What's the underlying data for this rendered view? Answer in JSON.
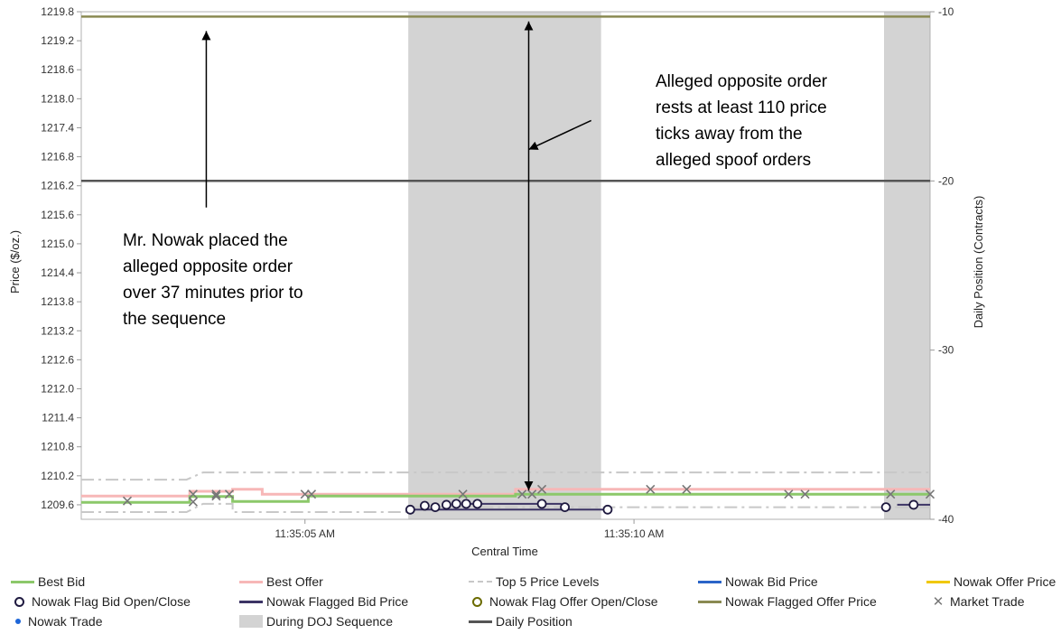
{
  "chart_data": {
    "type": "line",
    "xlabel": "Central Time",
    "ylabel": "Price ($/oz.)",
    "y2label": "Daily Position (Contracts)",
    "x_ticks": [
      {
        "t": 5,
        "label": "11:35:05 AM"
      },
      {
        "t": 10,
        "label": "11:35:10 AM"
      }
    ],
    "x_unit": "seconds after 11:35:00 AM",
    "xlim": [
      1.6,
      14.5
    ],
    "ylim": [
      1209.3,
      1219.8
    ],
    "y_ticks": [
      "1209.6",
      "1210.2",
      "1210.8",
      "1211.4",
      "1212.0",
      "1212.6",
      "1213.2",
      "1213.8",
      "1214.4",
      "1215.0",
      "1215.6",
      "1216.2",
      "1216.8",
      "1217.4",
      "1218.0",
      "1218.6",
      "1219.2",
      "1219.8"
    ],
    "y2lim": [
      -40,
      -10
    ],
    "y2_ticks": [
      "-10",
      "-20",
      "-30",
      "-40"
    ],
    "shaded_regions": [
      {
        "name": "During DOJ Sequence",
        "x": [
          6.57,
          9.5
        ]
      },
      {
        "name": "During DOJ Sequence",
        "x": [
          13.8,
          14.5
        ]
      }
    ],
    "series": [
      {
        "name": "Nowak Flagged Offer Price",
        "color": "#8a8a52",
        "width": 2.5,
        "points": [
          [
            1.6,
            1219.7
          ],
          [
            14.5,
            1219.7
          ]
        ]
      },
      {
        "name": "Daily Position",
        "axis": "y2",
        "color": "#555555",
        "width": 2.5,
        "points": [
          [
            1.6,
            -20
          ],
          [
            14.5,
            -20
          ]
        ]
      },
      {
        "name": "Best Offer",
        "color": "#f7b7b7",
        "width": 3,
        "points": [
          [
            1.6,
            1209.78
          ],
          [
            3.25,
            1209.78
          ],
          [
            3.25,
            1209.88
          ],
          [
            3.9,
            1209.88
          ],
          [
            3.9,
            1209.92
          ],
          [
            4.35,
            1209.92
          ],
          [
            4.35,
            1209.82
          ],
          [
            8.2,
            1209.82
          ],
          [
            8.2,
            1209.92
          ],
          [
            14.5,
            1209.92
          ]
        ]
      },
      {
        "name": "Best Bid",
        "color": "#8cc86a",
        "width": 3,
        "points": [
          [
            1.6,
            1209.65
          ],
          [
            3.25,
            1209.65
          ],
          [
            3.25,
            1209.77
          ],
          [
            3.9,
            1209.77
          ],
          [
            3.9,
            1209.67
          ],
          [
            5.05,
            1209.67
          ],
          [
            5.05,
            1209.78
          ],
          [
            8.2,
            1209.78
          ],
          [
            8.2,
            1209.82
          ],
          [
            14.5,
            1209.82
          ]
        ]
      },
      {
        "name": "Top 5 Price Levels",
        "color": "#c8c8c8",
        "width": 2,
        "dash": "14,5,3,5",
        "points": [
          [
            1.6,
            1210.12
          ],
          [
            3.2,
            1210.12
          ],
          [
            3.45,
            1210.27
          ],
          [
            14.5,
            1210.27
          ]
        ]
      },
      {
        "name": "Top 5 Price Levels",
        "color": "#c8c8c8",
        "width": 2,
        "dash": "14,5,3,5",
        "points": [
          [
            1.6,
            1209.45
          ],
          [
            3.2,
            1209.45
          ],
          [
            3.45,
            1209.62
          ],
          [
            3.9,
            1209.62
          ],
          [
            3.9,
            1209.45
          ],
          [
            6.6,
            1209.45
          ],
          [
            6.6,
            1209.55
          ],
          [
            14.5,
            1209.55
          ]
        ]
      },
      {
        "name": "Nowak Flagged Bid Price",
        "color": "#3c3465",
        "width": 2,
        "points": [
          [
            6.6,
            1209.5
          ],
          [
            9.6,
            1209.5
          ]
        ]
      },
      {
        "name": "Nowak Flagged Bid Price",
        "color": "#3c3465",
        "width": 2,
        "points": [
          [
            7.4,
            1209.62
          ],
          [
            8.9,
            1209.62
          ]
        ]
      },
      {
        "name": "Nowak Flagged Bid Price",
        "color": "#3c3465",
        "width": 2,
        "points": [
          [
            14.0,
            1209.6
          ],
          [
            14.5,
            1209.6
          ]
        ]
      }
    ],
    "market_trades": [
      [
        2.3,
        1209.68
      ],
      [
        3.3,
        1209.66
      ],
      [
        3.3,
        1209.82
      ],
      [
        3.65,
        1209.78
      ],
      [
        3.65,
        1209.82
      ],
      [
        3.85,
        1209.82
      ],
      [
        5.0,
        1209.82
      ],
      [
        5.1,
        1209.82
      ],
      [
        7.4,
        1209.82
      ],
      [
        8.3,
        1209.82
      ],
      [
        8.45,
        1209.82
      ],
      [
        8.6,
        1209.92
      ],
      [
        10.25,
        1209.92
      ],
      [
        10.8,
        1209.92
      ],
      [
        12.35,
        1209.82
      ],
      [
        12.6,
        1209.82
      ],
      [
        13.9,
        1209.82
      ],
      [
        14.5,
        1209.82
      ]
    ],
    "flag_bid_open_close": [
      [
        6.6,
        1209.5
      ],
      [
        6.82,
        1209.58
      ],
      [
        6.98,
        1209.55
      ],
      [
        7.15,
        1209.6
      ],
      [
        7.3,
        1209.62
      ],
      [
        7.45,
        1209.62
      ],
      [
        7.62,
        1209.62
      ],
      [
        8.6,
        1209.62
      ],
      [
        8.95,
        1209.55
      ],
      [
        9.6,
        1209.5
      ],
      [
        13.83,
        1209.55
      ],
      [
        14.25,
        1209.6
      ]
    ],
    "annotations": [
      {
        "id": "left_note",
        "lines": [
          "Mr. Nowak placed the",
          "alleged opposite order",
          "over 37 minutes prior to",
          "the sequence"
        ]
      },
      {
        "id": "right_note",
        "lines": [
          "Alleged opposite order",
          "rests at least 110 price",
          "ticks away from the",
          "alleged spoof orders"
        ]
      }
    ],
    "arrows": [
      {
        "from": [
          3.5,
          1215.75
        ],
        "to": [
          3.5,
          1219.4
        ],
        "heads": "end"
      },
      {
        "from": [
          8.4,
          1209.9
        ],
        "to": [
          8.4,
          1219.6
        ],
        "heads": "both"
      },
      {
        "from": [
          9.35,
          1217.55
        ],
        "to": [
          8.4,
          1216.95
        ],
        "heads": "end"
      }
    ],
    "legend": {
      "placement": "bottom",
      "entries": [
        {
          "label": "Best Bid",
          "kind": "line",
          "color": "#8cc86a"
        },
        {
          "label": "Best Offer",
          "kind": "line",
          "color": "#f7b7b7"
        },
        {
          "label": "Top 5 Price Levels",
          "kind": "dash",
          "color": "#c8c8c8"
        },
        {
          "label": "Nowak Bid Price",
          "kind": "line",
          "color": "#2a64c8"
        },
        {
          "label": "Nowak Offer Price",
          "kind": "line",
          "color": "#f0c800"
        },
        {
          "label": "Nowak Flag Bid Open/Close",
          "kind": "circle",
          "color": "#1f1a40"
        },
        {
          "label": "Nowak Flagged Bid Price",
          "kind": "line",
          "color": "#3c3465"
        },
        {
          "label": "Nowak Flag Offer Open/Close",
          "kind": "circle",
          "color": "#6b6b00"
        },
        {
          "label": "Nowak Flagged Offer Price",
          "kind": "line",
          "color": "#8a8a52"
        },
        {
          "label": "Market Trade",
          "kind": "x",
          "color": "#777777"
        },
        {
          "label": "Nowak Trade",
          "kind": "dot",
          "color": "#1e66d8"
        },
        {
          "label": "During DOJ Sequence",
          "kind": "rect",
          "color": "#d3d3d3"
        },
        {
          "label": "Daily Position",
          "kind": "line",
          "color": "#555555"
        }
      ]
    }
  }
}
